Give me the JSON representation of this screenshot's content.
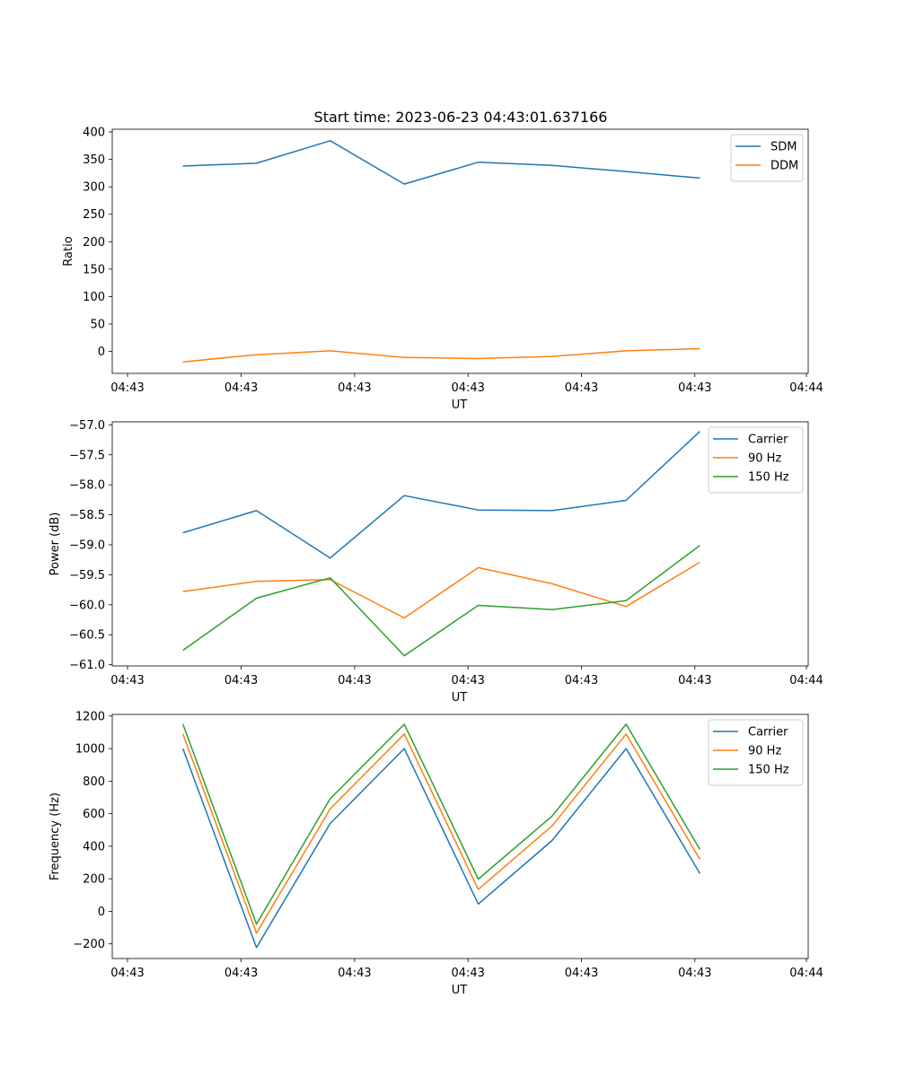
{
  "title": "Start time: 2023-06-23 04:43:01.637166",
  "colors": {
    "blue": "#1f77b4",
    "orange": "#ff7f0e",
    "green": "#2ca02c"
  },
  "chart_data": [
    {
      "type": "line",
      "title": "Start time: 2023-06-23 04:43:01.637166",
      "xlabel": "UT",
      "ylabel": "Ratio",
      "x_tick_labels": [
        "04:43",
        "04:43",
        "04:43",
        "04:43",
        "04:43",
        "04:43",
        "04:44"
      ],
      "y_ticks": [
        0,
        50,
        100,
        150,
        200,
        250,
        300,
        350,
        400
      ],
      "y_tick_labels": [
        "0",
        "50",
        "100",
        "150",
        "200",
        "250",
        "300",
        "350",
        "400"
      ],
      "ylim": [
        -40,
        405
      ],
      "legend": "top-right",
      "grid": false,
      "series": [
        {
          "name": "SDM",
          "color": "#1f77b4",
          "values": [
            338,
            343,
            384,
            305,
            345,
            339,
            328,
            316
          ]
        },
        {
          "name": "DDM",
          "color": "#ff7f0e",
          "values": [
            -19,
            -6,
            1,
            -11,
            -13,
            -9,
            1,
            5
          ]
        }
      ]
    },
    {
      "type": "line",
      "xlabel": "UT",
      "ylabel": "Power (dB)",
      "x_tick_labels": [
        "04:43",
        "04:43",
        "04:43",
        "04:43",
        "04:43",
        "04:43",
        "04:44"
      ],
      "y_ticks": [
        -61.0,
        -60.5,
        -60.0,
        -59.5,
        -59.0,
        -58.5,
        -58.0,
        -57.5,
        -57.0
      ],
      "y_tick_labels": [
        "−61.0",
        "−60.5",
        "−60.0",
        "−59.5",
        "−59.0",
        "−58.5",
        "−58.0",
        "−57.5",
        "−57.0"
      ],
      "ylim": [
        -61.02,
        -56.95
      ],
      "legend": "top-right",
      "grid": false,
      "series": [
        {
          "name": "Carrier",
          "color": "#1f77b4",
          "values": [
            -58.8,
            -58.43,
            -59.22,
            -58.18,
            -58.42,
            -58.43,
            -58.26,
            -57.11
          ]
        },
        {
          "name": "90 Hz",
          "color": "#ff7f0e",
          "values": [
            -59.78,
            -59.61,
            -59.58,
            -60.22,
            -59.38,
            -59.65,
            -60.03,
            -59.29
          ]
        },
        {
          "name": "150 Hz",
          "color": "#2ca02c",
          "values": [
            -60.76,
            -59.89,
            -59.55,
            -60.85,
            -60.01,
            -60.08,
            -59.93,
            -59.01
          ]
        }
      ]
    },
    {
      "type": "line",
      "xlabel": "UT",
      "ylabel": "Frequency (Hz)",
      "x_tick_labels": [
        "04:43",
        "04:43",
        "04:43",
        "04:43",
        "04:43",
        "04:43",
        "04:44"
      ],
      "y_ticks": [
        -200,
        0,
        200,
        400,
        600,
        800,
        1000,
        1200
      ],
      "y_tick_labels": [
        "−200",
        "0",
        "200",
        "400",
        "600",
        "800",
        "1000",
        "1200"
      ],
      "ylim": [
        -290,
        1210
      ],
      "legend": "top-right",
      "grid": false,
      "series": [
        {
          "name": "Carrier",
          "color": "#1f77b4",
          "values": [
            1000,
            -222,
            540,
            1000,
            45,
            435,
            1000,
            232
          ]
        },
        {
          "name": "90 Hz",
          "color": "#ff7f0e",
          "values": [
            1090,
            -134,
            630,
            1090,
            135,
            525,
            1090,
            320
          ]
        },
        {
          "name": "150 Hz",
          "color": "#2ca02c",
          "values": [
            1150,
            -78,
            692,
            1150,
            198,
            585,
            1150,
            380
          ]
        }
      ]
    }
  ]
}
